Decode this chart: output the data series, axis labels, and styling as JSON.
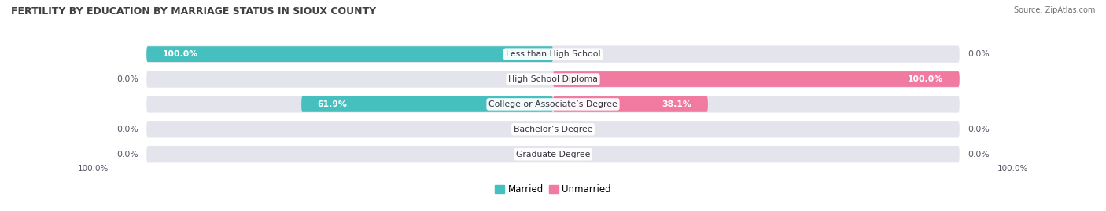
{
  "title": "FERTILITY BY EDUCATION BY MARRIAGE STATUS IN SIOUX COUNTY",
  "source": "Source: ZipAtlas.com",
  "categories": [
    "Less than High School",
    "High School Diploma",
    "College or Associate’s Degree",
    "Bachelor’s Degree",
    "Graduate Degree"
  ],
  "married_pct": [
    100.0,
    0.0,
    61.9,
    0.0,
    0.0
  ],
  "unmarried_pct": [
    0.0,
    100.0,
    38.1,
    0.0,
    0.0
  ],
  "married_color": "#45c0bf",
  "unmarried_color": "#f07aa0",
  "married_light": "#b8e0e0",
  "unmarried_light": "#f5c0d4",
  "bg_bar_color": "#e4e4ec",
  "background_color": "#ffffff",
  "label_color_dark": "#555565",
  "axis_label_left": "100.0%",
  "axis_label_right": "100.0%",
  "legend_married": "Married",
  "legend_unmarried": "Unmarried"
}
